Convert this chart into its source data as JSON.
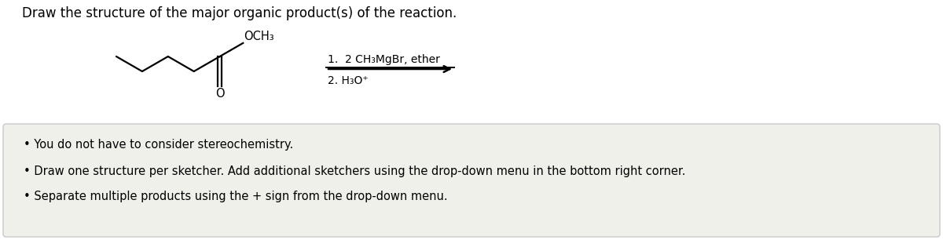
{
  "title": "Draw the structure of the major organic product(s) of the reaction.",
  "title_fontsize": 12,
  "title_color": "#000000",
  "background_color": "#ffffff",
  "box_background": "#f0f0eb",
  "box_edge_color": "#c8c8c8",
  "bullet_points": [
    "You do not have to consider stereochemistry.",
    "Draw one structure per sketcher. Add additional sketchers using the drop-down menu in the bottom right corner.",
    "Separate multiple products using the + sign from the drop-down menu."
  ],
  "bullet_fontsize": 10.5,
  "bullet_color": "#000000",
  "reaction_conditions_line1": "1.  2 CH₃MgBr, ether",
  "reaction_conditions_line2": "2. H₃O⁺",
  "ester_label": "OCH₃",
  "carbonyl_label": "O",
  "arrow_color": "#000000",
  "line_color": "#000000",
  "chem_fontsize": 10.5
}
